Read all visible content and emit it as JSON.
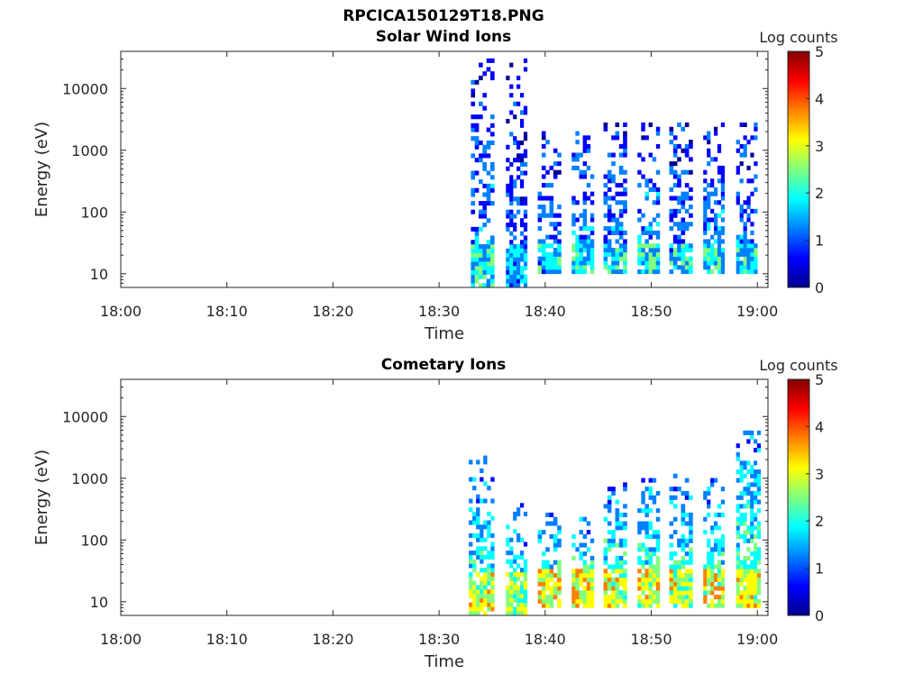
{
  "figure": {
    "filename": "RPCICA150129T18.PNG",
    "colormap": [
      "#00008f",
      "#0000ff",
      "#0080ff",
      "#00ffff",
      "#80ff80",
      "#ffff00",
      "#ff8000",
      "#ff0000",
      "#800000"
    ]
  },
  "chart_data": [
    {
      "type": "heatmap",
      "title": "Solar Wind Ions",
      "xlabel": "Time",
      "ylabel": "Energy (eV)",
      "x_ticks": [
        "18:00",
        "18:10",
        "18:20",
        "18:30",
        "18:40",
        "18:50",
        "19:00"
      ],
      "x_range": [
        "18:00",
        "19:01"
      ],
      "y_scale": "log",
      "y_ticks": [
        "10",
        "100",
        "1000",
        "10000"
      ],
      "y_range": [
        6,
        40000
      ],
      "colorbar": {
        "label": "Log counts",
        "range": [
          0,
          5
        ],
        "ticks": [
          "0",
          "1",
          "2",
          "3",
          "4",
          "5"
        ]
      },
      "bursts": [
        {
          "start_min": 33.0,
          "end_min": 35.2,
          "emin": 6,
          "emax": 30000,
          "level": 1.4
        },
        {
          "start_min": 36.3,
          "end_min": 38.3,
          "emin": 6,
          "emax": 30000,
          "level": 1.0
        },
        {
          "start_min": 39.3,
          "end_min": 41.5,
          "emin": 10,
          "emax": 2000,
          "level": 1.2
        },
        {
          "start_min": 42.5,
          "end_min": 44.6,
          "emin": 10,
          "emax": 3000,
          "level": 1.5
        },
        {
          "start_min": 45.5,
          "end_min": 47.7,
          "emin": 10,
          "emax": 3000,
          "level": 1.4
        },
        {
          "start_min": 48.7,
          "end_min": 50.8,
          "emin": 10,
          "emax": 3000,
          "level": 1.6
        },
        {
          "start_min": 51.7,
          "end_min": 53.9,
          "emin": 10,
          "emax": 3000,
          "level": 1.3
        },
        {
          "start_min": 54.9,
          "end_min": 56.9,
          "emin": 10,
          "emax": 3000,
          "level": 1.5
        },
        {
          "start_min": 58.0,
          "end_min": 60.0,
          "emin": 10,
          "emax": 3000,
          "level": 1.4
        }
      ]
    },
    {
      "type": "heatmap",
      "title": "Cometary Ions",
      "xlabel": "Time",
      "ylabel": "Energy (eV)",
      "x_ticks": [
        "18:00",
        "18:10",
        "18:20",
        "18:30",
        "18:40",
        "18:50",
        "19:00"
      ],
      "x_range": [
        "18:00",
        "19:01"
      ],
      "y_scale": "log",
      "y_ticks": [
        "10",
        "100",
        "1000",
        "10000"
      ],
      "y_range": [
        6,
        40000
      ],
      "colorbar": {
        "label": "Log counts",
        "range": [
          0,
          5
        ],
        "ticks": [
          "0",
          "1",
          "2",
          "3",
          "4",
          "5"
        ]
      },
      "bursts": [
        {
          "start_min": 32.8,
          "end_min": 35.2,
          "emin": 6,
          "emax": 2500,
          "level": 2.4
        },
        {
          "start_min": 36.3,
          "end_min": 38.3,
          "emin": 6,
          "emax": 400,
          "level": 2.2
        },
        {
          "start_min": 39.3,
          "end_min": 41.5,
          "emin": 8,
          "emax": 300,
          "level": 2.6
        },
        {
          "start_min": 42.5,
          "end_min": 44.6,
          "emin": 8,
          "emax": 300,
          "level": 2.6
        },
        {
          "start_min": 45.5,
          "end_min": 47.7,
          "emin": 8,
          "emax": 800,
          "level": 2.5
        },
        {
          "start_min": 48.7,
          "end_min": 50.8,
          "emin": 8,
          "emax": 1200,
          "level": 2.5
        },
        {
          "start_min": 51.7,
          "end_min": 53.9,
          "emin": 8,
          "emax": 1200,
          "level": 2.4
        },
        {
          "start_min": 54.9,
          "end_min": 56.9,
          "emin": 8,
          "emax": 1200,
          "level": 2.5
        },
        {
          "start_min": 58.0,
          "end_min": 60.3,
          "emin": 8,
          "emax": 6000,
          "level": 2.5
        }
      ]
    }
  ]
}
